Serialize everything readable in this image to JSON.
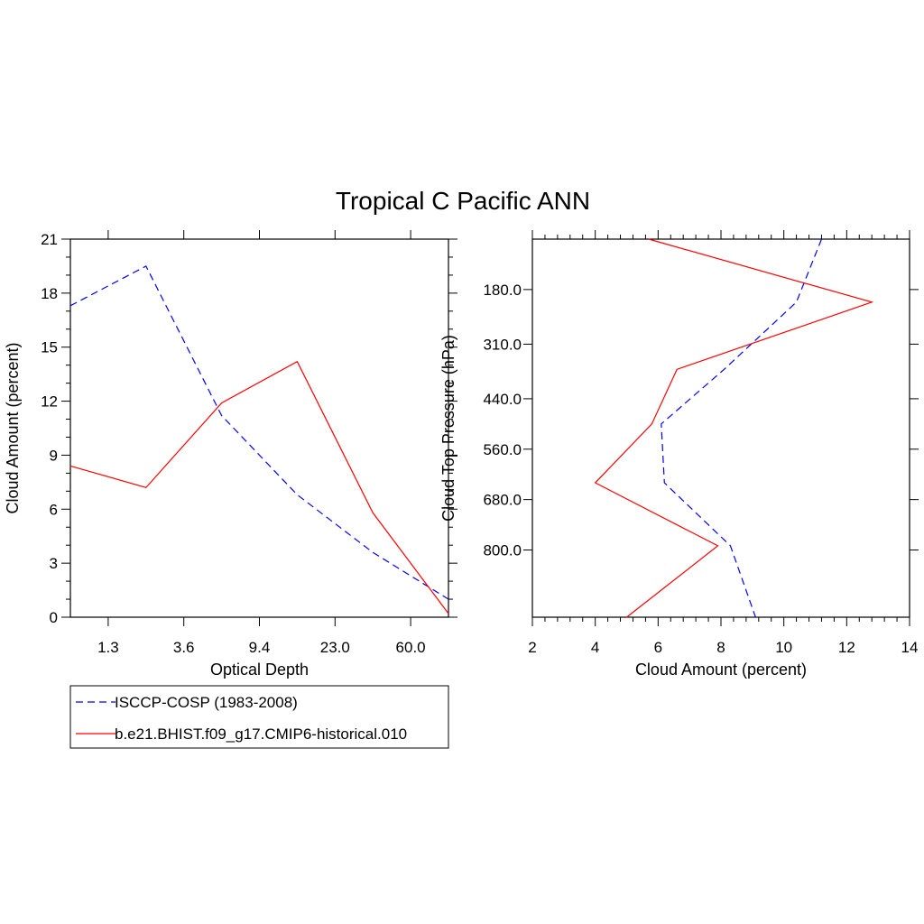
{
  "title": "Tropical C Pacific ANN",
  "colors": {
    "obs": "#0000ff",
    "model": "#ff0000",
    "axis": "#000000"
  },
  "legend": {
    "items": [
      {
        "label": "ISCCP-COSP (1983-2008)",
        "style": "dashed",
        "color": "#0000ff"
      },
      {
        "label": "b.e21.BHIST.f09_g17.CMIP6-historical.010",
        "style": "solid",
        "color": "#ff0000"
      }
    ]
  },
  "chart_data": [
    {
      "type": "line",
      "xlabel": "Optical Depth",
      "ylabel": "Cloud Amount (percent)",
      "x_tick_labels": [
        "1.3",
        "3.6",
        "9.4",
        "23.0",
        "60.0"
      ],
      "x_tick_positions": [
        1,
        3,
        5,
        7,
        9
      ],
      "xlim": [
        0,
        10
      ],
      "ylim": [
        0,
        21
      ],
      "y_ticks": [
        0,
        3,
        6,
        9,
        12,
        15,
        18,
        21
      ],
      "series": [
        {
          "name": "ISCCP-COSP (1983-2008)",
          "x": [
            0,
            2,
            4,
            6,
            8,
            10
          ],
          "values": [
            17.3,
            19.5,
            11.2,
            6.8,
            3.6,
            1.0
          ]
        },
        {
          "name": "b.e21.BHIST.f09_g17.CMIP6-historical.010",
          "x": [
            0,
            2,
            4,
            6,
            8,
            10
          ],
          "values": [
            8.4,
            7.2,
            11.9,
            14.2,
            5.8,
            0.2
          ]
        }
      ]
    },
    {
      "type": "line",
      "xlabel": "Cloud Amount (percent)",
      "ylabel": "Cloud Top Pressure (hPa)",
      "xlim": [
        2,
        14
      ],
      "x_ticks": [
        2,
        4,
        6,
        8,
        10,
        12,
        14
      ],
      "ylim": [
        60,
        960
      ],
      "y_ticks": [
        180,
        310,
        440,
        560,
        680,
        800
      ],
      "y_tick_labels": [
        "180.0",
        "310.0",
        "440.0",
        "560.0",
        "680.0",
        "800.0"
      ],
      "y_inverted": true,
      "series": [
        {
          "name": "ISCCP-COSP (1983-2008)",
          "pressure": [
            60,
            210,
            370,
            500,
            640,
            790,
            960
          ],
          "values": [
            11.2,
            10.4,
            8.1,
            6.1,
            6.2,
            8.3,
            9.1
          ]
        },
        {
          "name": "b.e21.BHIST.f09_g17.CMIP6-historical.010",
          "pressure": [
            60,
            210,
            370,
            500,
            640,
            790,
            960
          ],
          "values": [
            5.7,
            12.8,
            6.6,
            5.8,
            4.0,
            7.9,
            5.0
          ]
        }
      ]
    }
  ]
}
